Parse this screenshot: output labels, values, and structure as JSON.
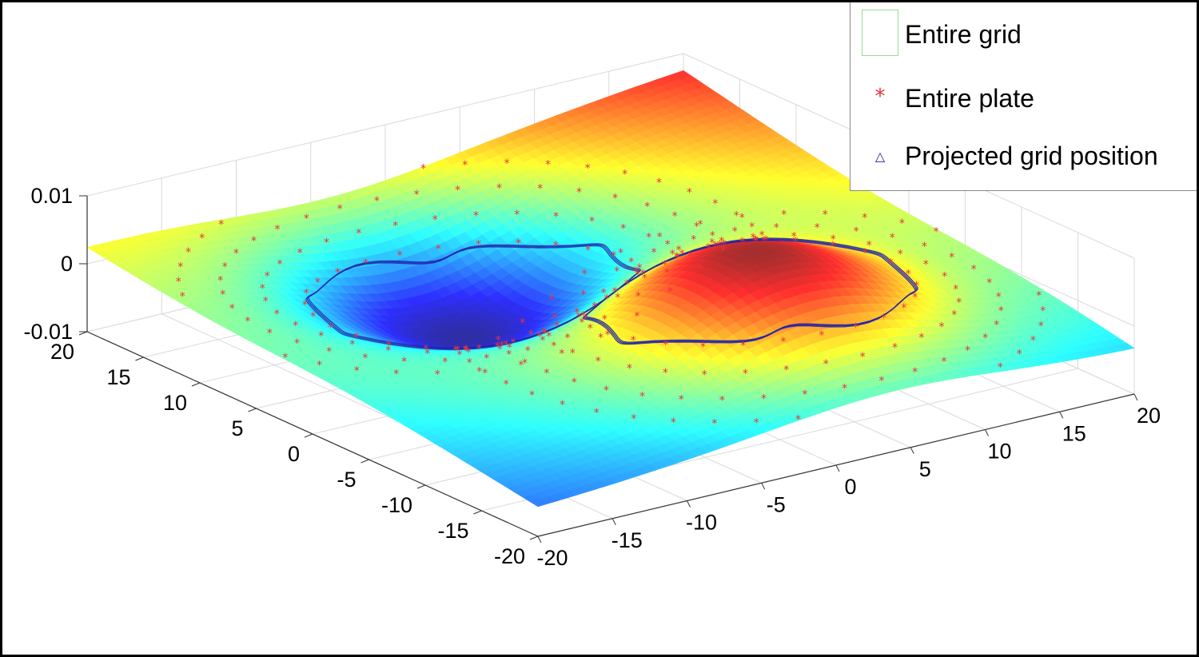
{
  "chart_data": {
    "type": "surface3d",
    "title": "",
    "xlabel": "",
    "ylabel": "",
    "zlabel": "",
    "xlim": [
      -20,
      20
    ],
    "ylim": [
      -20,
      20
    ],
    "zlim": [
      -0.01,
      0.01
    ],
    "x_ticks": [
      "-20",
      "-15",
      "-10",
      "-5",
      "0",
      "5",
      "10",
      "15",
      "20"
    ],
    "y_ticks": [
      "-20",
      "-15",
      "-10",
      "-5",
      "0",
      "5",
      "10",
      "15",
      "20"
    ],
    "z_ticks": [
      "-0.01",
      "0",
      "0.01"
    ],
    "grid": true,
    "colormap": "jet",
    "surface": {
      "description_of_shape": "antisymmetric dipole deflection: one depression and one bump of equal magnitude",
      "trough": {
        "x": -4,
        "y": 7,
        "z": -0.01
      },
      "peak": {
        "x": 4,
        "y": -7,
        "z": 0.01
      },
      "corner_values": [
        {
          "x": -20,
          "y": 20,
          "z": 0.003
        },
        {
          "x": 20,
          "y": 20,
          "z": 0.008
        },
        {
          "x": 20,
          "y": -20,
          "z": -0.004
        },
        {
          "x": -20,
          "y": -20,
          "z": -0.006
        }
      ]
    },
    "plate_markers": {
      "shape": "ring pattern of points around both extrema",
      "color": "#e8353a"
    },
    "projected_grid": {
      "shape": "contour around the peak and trough",
      "color": "#2222aa"
    },
    "legend": {
      "placement": "top-right",
      "entries": [
        {
          "label": "Entire grid",
          "marker": "square",
          "color": "#88cc88"
        },
        {
          "label": "Entire plate",
          "marker": "asterisk",
          "color": "#e8353a"
        },
        {
          "label": "Projected grid position",
          "marker": "triangle",
          "color": "#2222aa"
        }
      ]
    }
  }
}
